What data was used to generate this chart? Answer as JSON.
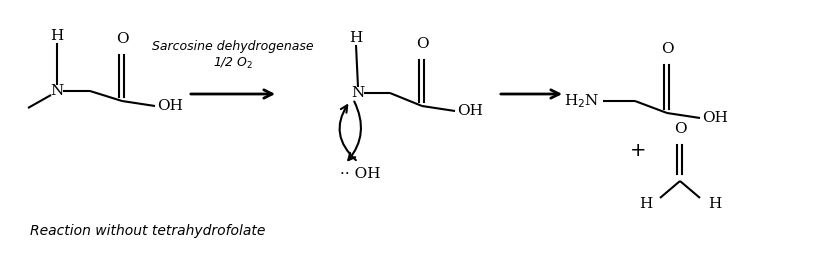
{
  "bg_color": "#ffffff",
  "line_color": "#000000",
  "title": "Sarcosine dehydrogenase",
  "subtitle": "1/2 O₂",
  "bottom_text": "Reaction without tetrahydrofolate",
  "figsize": [
    8.2,
    2.56
  ],
  "dpi": 100
}
